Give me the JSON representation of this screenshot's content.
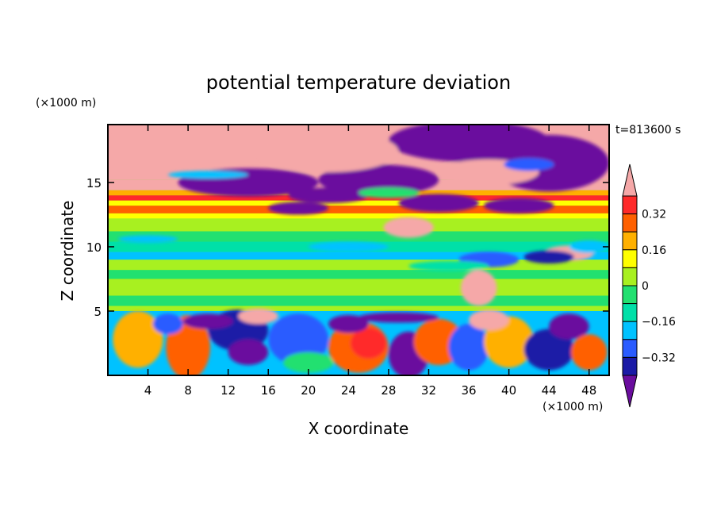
{
  "chart_data": {
    "type": "heatmap",
    "title": "potential temperature deviation",
    "xlabel": "X coordinate",
    "ylabel": "Z coordinate",
    "x_unit": "(×1000 m)",
    "y_unit": "(×1000 m)",
    "time_label": "t=813600 s",
    "xlim": [
      0,
      50
    ],
    "ylim": [
      0,
      19.5
    ],
    "x_ticks": [
      "4",
      "8",
      "12",
      "16",
      "20",
      "24",
      "28",
      "32",
      "36",
      "40",
      "44",
      "48"
    ],
    "y_ticks": [
      "5",
      "10",
      "15"
    ],
    "colorbar": {
      "labels": [
        "0.32",
        "0.16",
        "0",
        "−0.16",
        "−0.32"
      ],
      "levels": [
        -0.4,
        -0.32,
        -0.24,
        -0.16,
        -0.08,
        0,
        0.08,
        0.16,
        0.24,
        0.32,
        0.4
      ],
      "colors": [
        "#6a0d9e",
        "#1a1aa6",
        "#2a5cff",
        "#00c2ff",
        "#00e0a8",
        "#22e070",
        "#a8f020",
        "#ffff00",
        "#ffb000",
        "#ff6000",
        "#ff2a2a",
        "#f5a8a8"
      ]
    }
  }
}
